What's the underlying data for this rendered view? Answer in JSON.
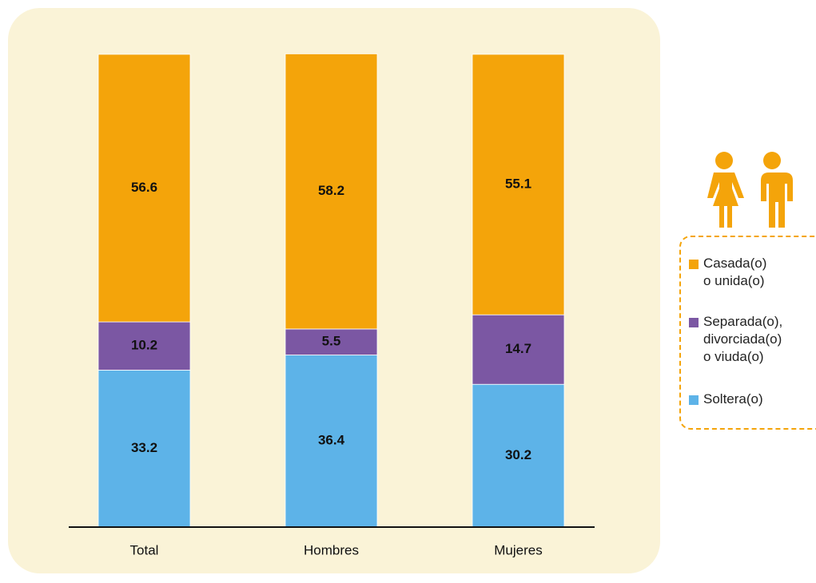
{
  "chart_data": {
    "type": "stacked_bar",
    "categories": [
      "Total",
      "Hombres",
      "Mujeres"
    ],
    "series": [
      {
        "name": "Soltera(o)",
        "color": "#5db3e8",
        "values": [
          33.2,
          36.4,
          30.2
        ]
      },
      {
        "name": "Separada(o),\ndivorciada(o)\no viuda(o)",
        "color": "#7b57a3",
        "values": [
          10.2,
          5.5,
          14.7
        ]
      },
      {
        "name": "Casada(o)\no unida(o)",
        "color": "#f4a40a",
        "values": [
          56.6,
          58.2,
          55.1
        ]
      }
    ],
    "ylim": [
      0,
      100
    ]
  }
}
